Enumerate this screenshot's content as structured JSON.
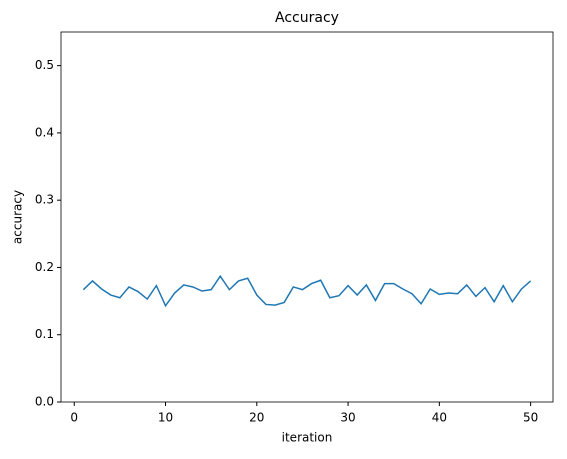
{
  "chart_data": {
    "type": "line",
    "title": "Accuracy",
    "xlabel": "iteration",
    "ylabel": "accuracy",
    "x": [
      1,
      2,
      3,
      4,
      5,
      6,
      7,
      8,
      9,
      10,
      11,
      12,
      13,
      14,
      15,
      16,
      17,
      18,
      19,
      20,
      21,
      22,
      23,
      24,
      25,
      26,
      27,
      28,
      29,
      30,
      31,
      32,
      33,
      34,
      35,
      36,
      37,
      38,
      39,
      40,
      41,
      42,
      43,
      44,
      45,
      46,
      47,
      48,
      49,
      50
    ],
    "series": [
      {
        "name": "accuracy",
        "color": "#1f77b4",
        "values": [
          0.167,
          0.18,
          0.168,
          0.159,
          0.155,
          0.171,
          0.164,
          0.153,
          0.173,
          0.143,
          0.162,
          0.174,
          0.171,
          0.165,
          0.167,
          0.187,
          0.167,
          0.18,
          0.184,
          0.159,
          0.145,
          0.144,
          0.148,
          0.171,
          0.167,
          0.176,
          0.181,
          0.155,
          0.158,
          0.173,
          0.159,
          0.174,
          0.151,
          0.176,
          0.176,
          0.168,
          0.161,
          0.146,
          0.168,
          0.16,
          0.162,
          0.161,
          0.174,
          0.157,
          0.17,
          0.149,
          0.173,
          0.149,
          0.168,
          0.18
        ]
      }
    ],
    "xlim": [
      -1.45,
      52.45
    ],
    "xticks": [
      0,
      10,
      20,
      30,
      40,
      50
    ],
    "ylim": [
      0,
      0.55
    ],
    "yticks": [
      {
        "value": 0,
        "label": "0.0"
      },
      0.1,
      0.2,
      0.3,
      0.4,
      0.5
    ]
  }
}
